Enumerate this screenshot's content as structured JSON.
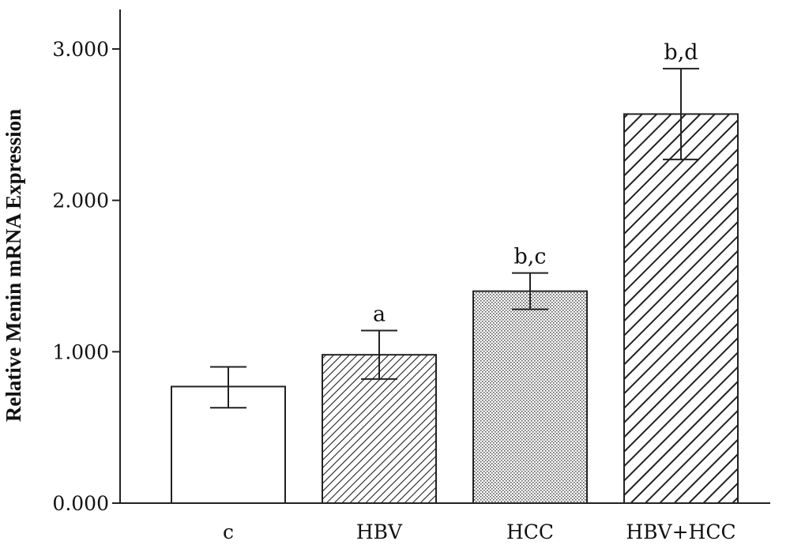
{
  "chart_data": {
    "type": "bar",
    "categories": [
      "c",
      "HBV",
      "HCC",
      "HBV+HCC"
    ],
    "values": [
      0.77,
      0.98,
      1.4,
      2.57
    ],
    "error_low": [
      0.63,
      0.82,
      1.28,
      2.27
    ],
    "error_high": [
      0.9,
      1.14,
      1.52,
      2.87
    ],
    "annotations": [
      "",
      "a",
      "b,c",
      "b,d"
    ],
    "patterns": [
      "none",
      "fine-diagonal",
      "dots",
      "wide-diagonal"
    ],
    "xlabel": "",
    "ylabel": "Relative Menin mRNA Expression",
    "ylim": [
      0,
      3.3
    ],
    "yticks": [
      0,
      1,
      2,
      3
    ],
    "ytick_labels": [
      "0.000",
      "1.000",
      "2.000",
      "3.000"
    ],
    "grid": false,
    "legend": "none",
    "colors": {
      "axis": "#222222",
      "bar_fill": "#ffffff",
      "pattern": "#222222"
    }
  }
}
